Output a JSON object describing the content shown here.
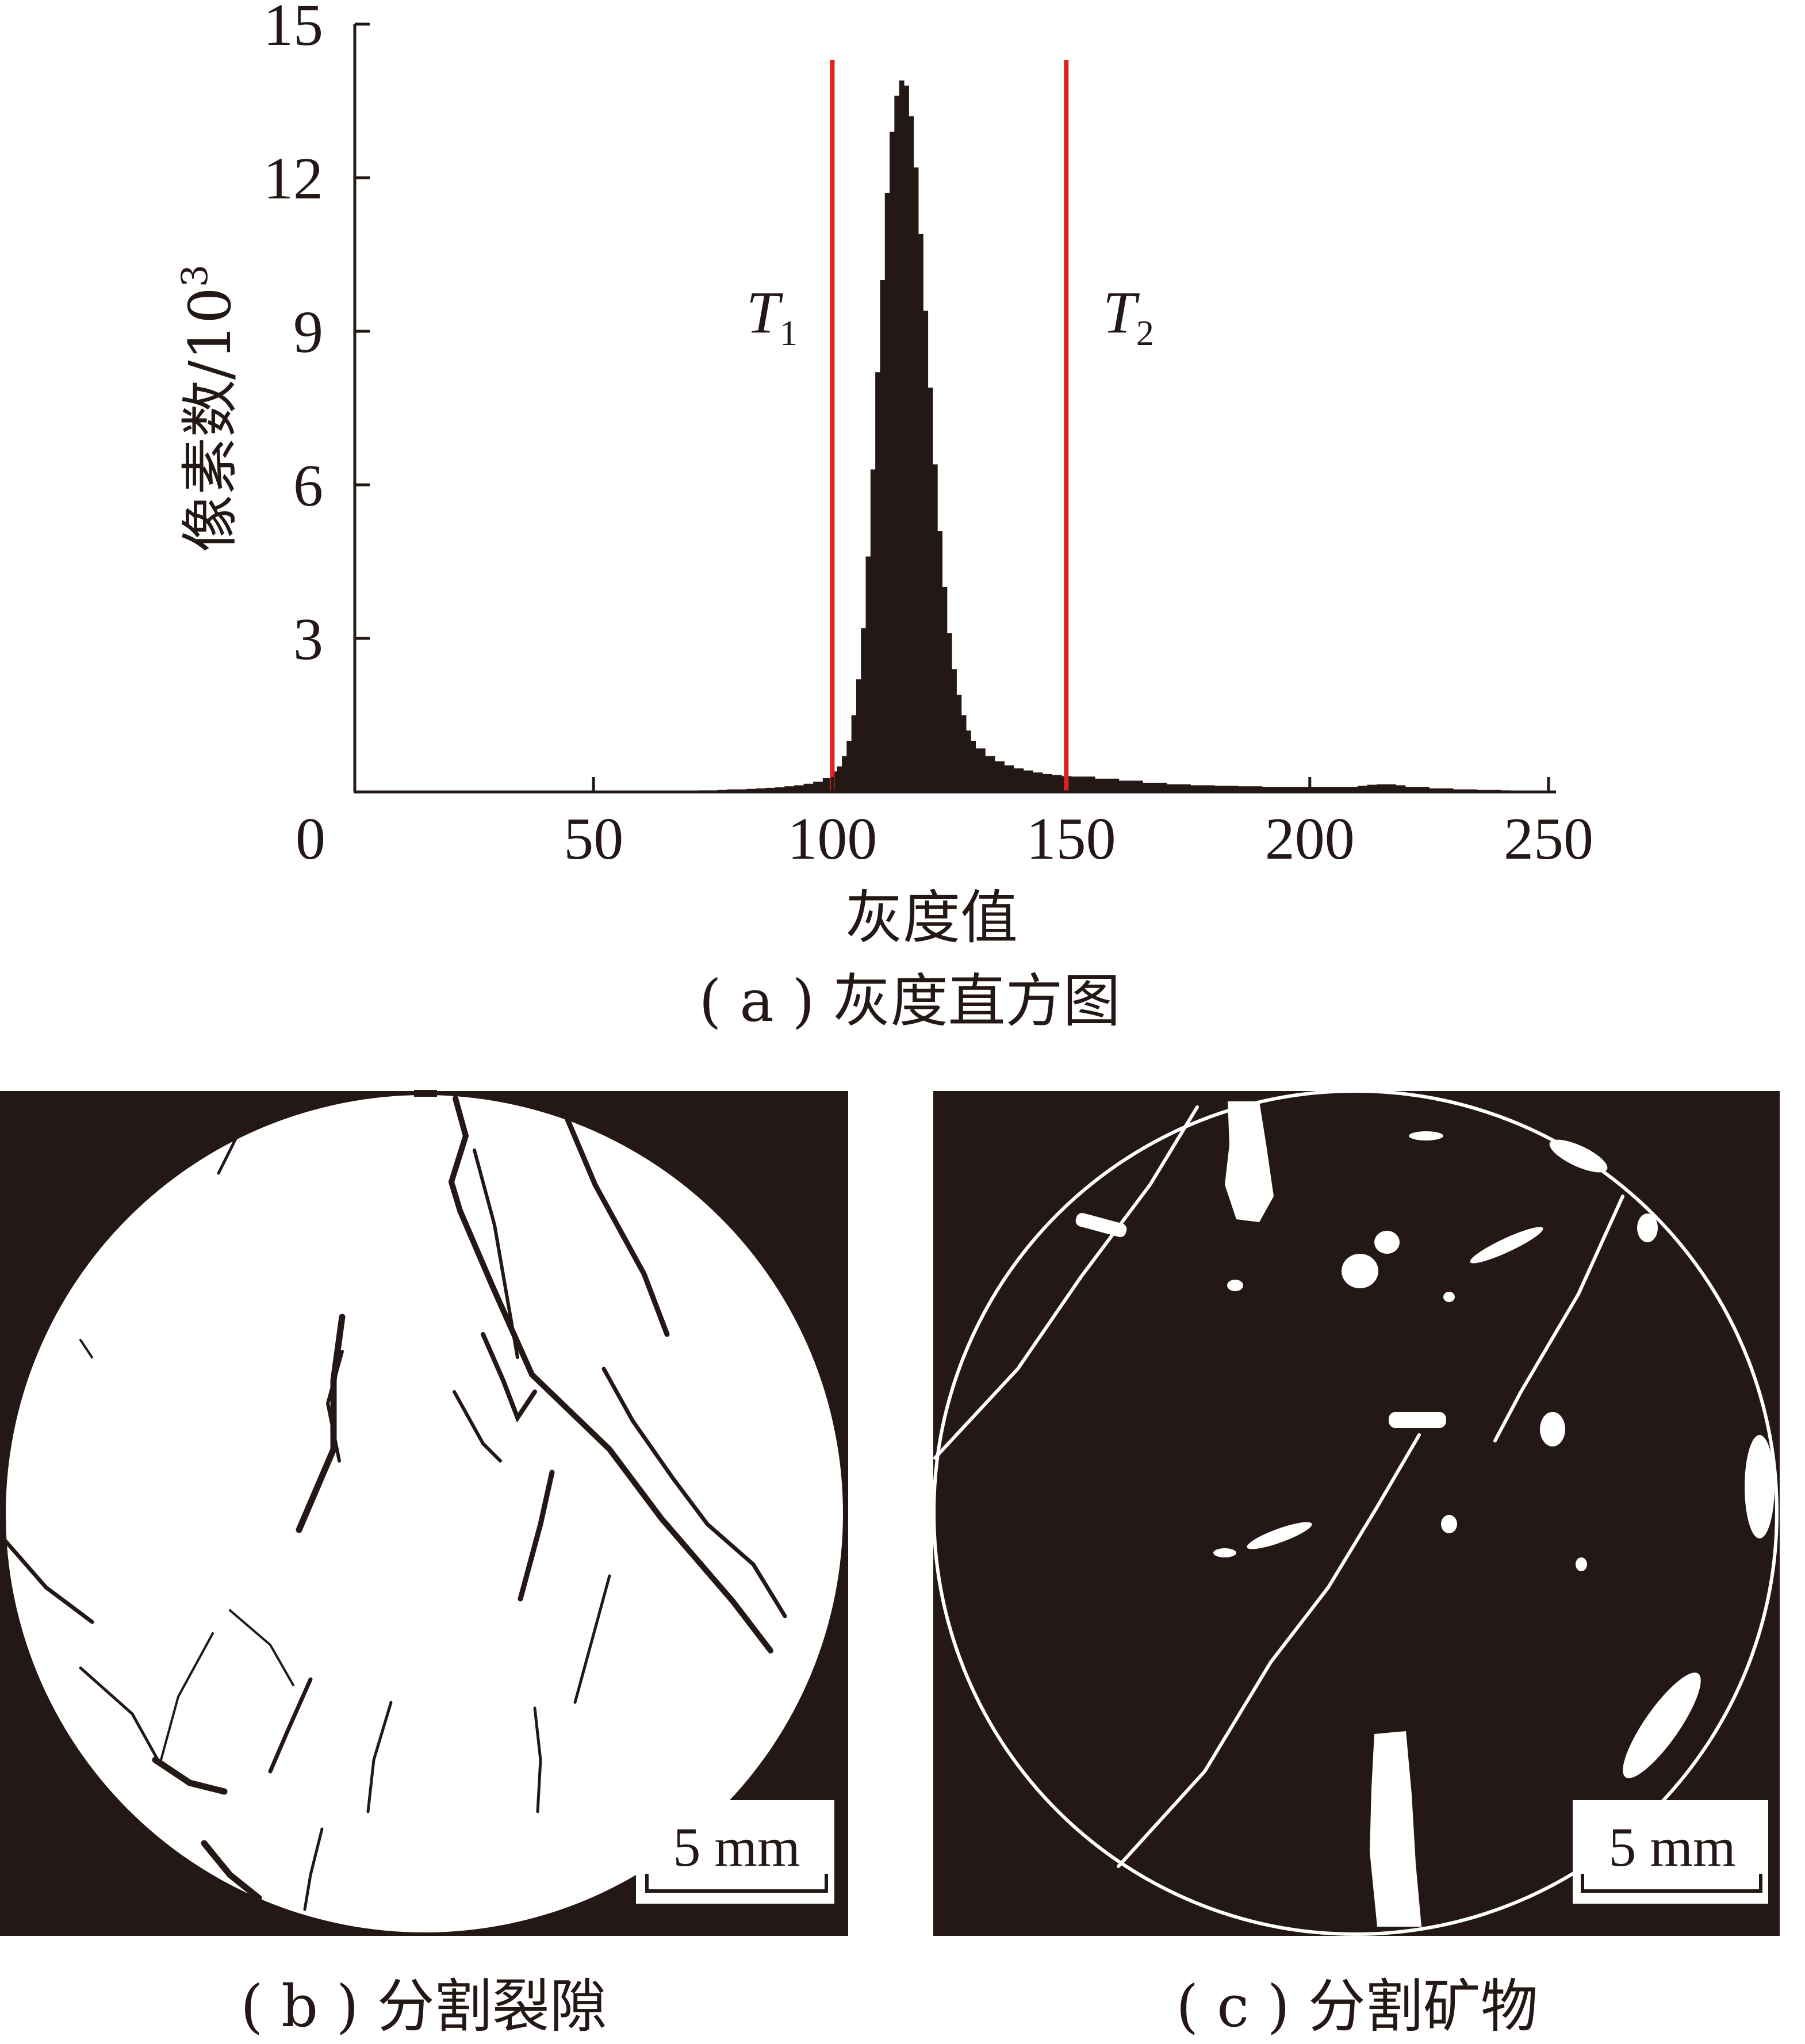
{
  "chart_data": {
    "type": "bar",
    "xlabel": "灰度值",
    "ylabel": "像素数/10",
    "ylabel_exponent": "3",
    "xlim": [
      0,
      250
    ],
    "ylim": [
      0,
      15
    ],
    "xticks": [
      0,
      50,
      100,
      150,
      200,
      250
    ],
    "yticks": [
      3,
      6,
      9,
      12,
      15
    ],
    "x": [
      70,
      72,
      74,
      76,
      78,
      80,
      82,
      84,
      86,
      88,
      90,
      92,
      94,
      96,
      98,
      100,
      101,
      102,
      103,
      104,
      105,
      106,
      107,
      108,
      109,
      110,
      111,
      112,
      113,
      114,
      115,
      116,
      117,
      118,
      119,
      120,
      121,
      122,
      123,
      124,
      125,
      126,
      127,
      128,
      129,
      130,
      132,
      134,
      136,
      138,
      140,
      142,
      144,
      146,
      148,
      150,
      155,
      160,
      165,
      170,
      175,
      180,
      185,
      190,
      195,
      200,
      205,
      210,
      212,
      214,
      216,
      218,
      220,
      225,
      230,
      235,
      240
    ],
    "values": [
      0.02,
      0.03,
      0.03,
      0.04,
      0.05,
      0.05,
      0.06,
      0.07,
      0.08,
      0.09,
      0.11,
      0.13,
      0.16,
      0.2,
      0.27,
      0.4,
      0.5,
      0.7,
      1.0,
      1.5,
      2.2,
      3.2,
      4.6,
      6.3,
      8.2,
      10.0,
      11.7,
      12.9,
      13.6,
      13.9,
      13.8,
      13.2,
      12.2,
      10.9,
      9.4,
      7.9,
      6.4,
      5.1,
      4.0,
      3.1,
      2.4,
      1.9,
      1.5,
      1.2,
      1.0,
      0.85,
      0.7,
      0.6,
      0.52,
      0.46,
      0.42,
      0.38,
      0.35,
      0.33,
      0.31,
      0.3,
      0.26,
      0.22,
      0.18,
      0.15,
      0.13,
      0.12,
      0.11,
      0.1,
      0.1,
      0.1,
      0.1,
      0.12,
      0.14,
      0.15,
      0.15,
      0.13,
      0.1,
      0.07,
      0.05,
      0.04,
      0.03
    ],
    "thresholds": [
      {
        "name": "T",
        "sub": "1",
        "x": 100
      },
      {
        "name": "T",
        "sub": "2",
        "x": 149
      }
    ]
  },
  "colors": {
    "bars": "#231815",
    "threshold": "#e0211e",
    "panel_black": "#231815",
    "panel_white": "#ffffff"
  },
  "captions": {
    "a": "( a ) 灰度直方图",
    "b": "( b ) 分割裂隙",
    "c": "( c ) 分割矿物"
  },
  "scale_bar": {
    "b": "5 mm",
    "c": "5 mm"
  }
}
